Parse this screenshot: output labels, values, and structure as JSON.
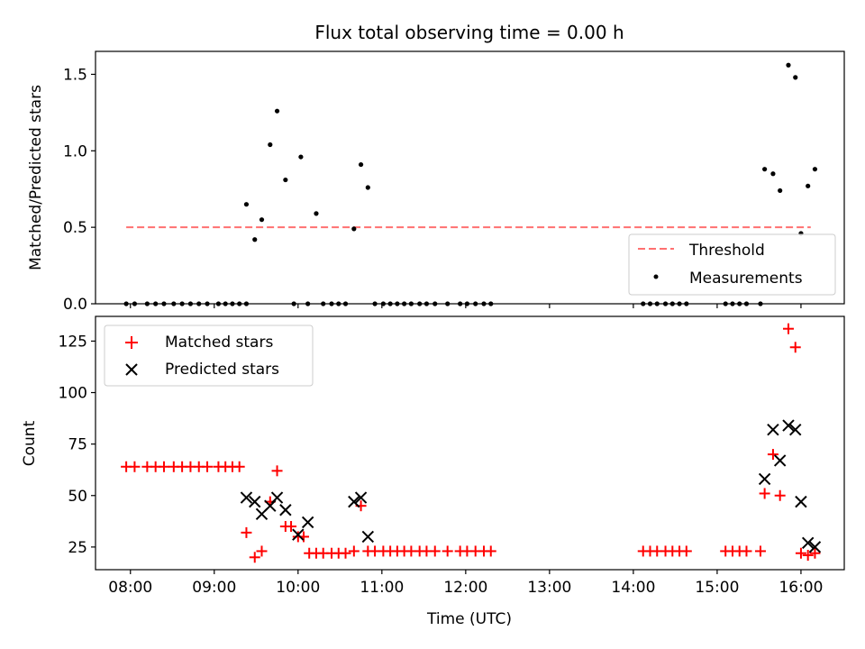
{
  "chart_data": [
    {
      "type": "scatter",
      "title": "Flux total observing time = 0.00 h",
      "ylabel": "Matched/Predicted stars",
      "xlabel": "",
      "xlim": [
        "07:35",
        "16:31"
      ],
      "ylim": [
        0,
        1.65
      ],
      "yticks": [
        0.0,
        0.5,
        1.0,
        1.5
      ],
      "ytick_labels": [
        "0.0",
        "0.5",
        "1.0",
        "1.5"
      ],
      "legend": {
        "placement": "bottom-right",
        "entries": [
          "Threshold",
          "Measurements"
        ]
      },
      "threshold": {
        "name": "Threshold",
        "value": 0.5,
        "x_range": [
          "07:57",
          "16:07"
        ],
        "color": "#ff7070",
        "style": "dashed"
      },
      "series": [
        {
          "name": "Measurements",
          "color": "#000000",
          "marker": "dot",
          "points": [
            [
              "07:57",
              0
            ],
            [
              "08:03",
              0
            ],
            [
              "08:12",
              0
            ],
            [
              "08:18",
              0
            ],
            [
              "08:24",
              0
            ],
            [
              "08:31",
              0
            ],
            [
              "08:37",
              0
            ],
            [
              "08:43",
              0
            ],
            [
              "08:49",
              0
            ],
            [
              "08:55",
              0
            ],
            [
              "09:03",
              0
            ],
            [
              "09:08",
              0
            ],
            [
              "09:13",
              0
            ],
            [
              "09:18",
              0
            ],
            [
              "09:23",
              0
            ],
            [
              "09:23",
              0.65
            ],
            [
              "09:29",
              0.42
            ],
            [
              "09:34",
              0.55
            ],
            [
              "09:40",
              1.04
            ],
            [
              "09:45",
              1.26
            ],
            [
              "09:51",
              0.81
            ],
            [
              "09:57",
              0
            ],
            [
              "10:02",
              0.96
            ],
            [
              "10:07",
              0
            ],
            [
              "10:13",
              0.59
            ],
            [
              "10:18",
              0
            ],
            [
              "10:24",
              0
            ],
            [
              "10:29",
              0
            ],
            [
              "10:34",
              0
            ],
            [
              "10:40",
              0.49
            ],
            [
              "10:45",
              0.91
            ],
            [
              "10:50",
              0.76
            ],
            [
              "10:55",
              0
            ],
            [
              "11:01",
              0
            ],
            [
              "11:06",
              0
            ],
            [
              "11:11",
              0
            ],
            [
              "11:16",
              0
            ],
            [
              "11:21",
              0
            ],
            [
              "11:27",
              0
            ],
            [
              "11:32",
              0
            ],
            [
              "11:38",
              0
            ],
            [
              "11:47",
              0
            ],
            [
              "11:56",
              0
            ],
            [
              "12:01",
              0
            ],
            [
              "12:07",
              0
            ],
            [
              "12:13",
              0
            ],
            [
              "12:18",
              0
            ],
            [
              "14:07",
              0
            ],
            [
              "14:12",
              0
            ],
            [
              "14:17",
              0
            ],
            [
              "14:23",
              0
            ],
            [
              "14:28",
              0
            ],
            [
              "14:33",
              0
            ],
            [
              "14:38",
              0
            ],
            [
              "15:06",
              0
            ],
            [
              "15:11",
              0
            ],
            [
              "15:16",
              0
            ],
            [
              "15:21",
              0
            ],
            [
              "15:31",
              0
            ],
            [
              "15:34",
              0.88
            ],
            [
              "15:40",
              0.85
            ],
            [
              "15:45",
              0.74
            ],
            [
              "15:51",
              1.56
            ],
            [
              "15:56",
              1.48
            ],
            [
              "16:00",
              0.46
            ],
            [
              "16:05",
              0.77
            ],
            [
              "16:10",
              0.88
            ]
          ]
        }
      ]
    },
    {
      "type": "scatter",
      "title": "",
      "ylabel": "Count",
      "xlabel": "Time (UTC)",
      "xlim": [
        "07:35",
        "16:31"
      ],
      "ylim": [
        14,
        137
      ],
      "yticks": [
        25,
        50,
        75,
        100,
        125
      ],
      "ytick_labels": [
        "25",
        "50",
        "75",
        "100",
        "125"
      ],
      "xticks": [
        "08:00",
        "09:00",
        "10:00",
        "11:00",
        "12:00",
        "13:00",
        "14:00",
        "15:00",
        "16:00"
      ],
      "legend": {
        "placement": "top-left",
        "entries": [
          "Matched stars",
          "Predicted stars"
        ]
      },
      "series": [
        {
          "name": "Matched stars",
          "color": "#ff0000",
          "marker": "plus",
          "points": [
            [
              "07:57",
              64
            ],
            [
              "08:03",
              64
            ],
            [
              "08:12",
              64
            ],
            [
              "08:18",
              64
            ],
            [
              "08:24",
              64
            ],
            [
              "08:31",
              64
            ],
            [
              "08:37",
              64
            ],
            [
              "08:43",
              64
            ],
            [
              "08:49",
              64
            ],
            [
              "08:55",
              64
            ],
            [
              "09:03",
              64
            ],
            [
              "09:08",
              64
            ],
            [
              "09:13",
              64
            ],
            [
              "09:18",
              64
            ],
            [
              "09:23",
              32
            ],
            [
              "09:29",
              20
            ],
            [
              "09:34",
              23
            ],
            [
              "09:40",
              47
            ],
            [
              "09:45",
              62
            ],
            [
              "09:51",
              35
            ],
            [
              "09:55",
              35
            ],
            [
              "10:00",
              30
            ],
            [
              "10:04",
              30
            ],
            [
              "10:08",
              22
            ],
            [
              "10:13",
              22
            ],
            [
              "10:18",
              22
            ],
            [
              "10:24",
              22
            ],
            [
              "10:29",
              22
            ],
            [
              "10:34",
              22
            ],
            [
              "10:40",
              23
            ],
            [
              "10:45",
              45
            ],
            [
              "10:50",
              23
            ],
            [
              "10:55",
              23
            ],
            [
              "11:01",
              23
            ],
            [
              "11:06",
              23
            ],
            [
              "11:11",
              23
            ],
            [
              "11:16",
              23
            ],
            [
              "11:21",
              23
            ],
            [
              "11:27",
              23
            ],
            [
              "11:32",
              23
            ],
            [
              "11:38",
              23
            ],
            [
              "11:47",
              23
            ],
            [
              "11:56",
              23
            ],
            [
              "12:01",
              23
            ],
            [
              "12:07",
              23
            ],
            [
              "12:13",
              23
            ],
            [
              "12:18",
              23
            ],
            [
              "14:07",
              23
            ],
            [
              "14:12",
              23
            ],
            [
              "14:17",
              23
            ],
            [
              "14:23",
              23
            ],
            [
              "14:28",
              23
            ],
            [
              "14:33",
              23
            ],
            [
              "14:38",
              23
            ],
            [
              "15:06",
              23
            ],
            [
              "15:11",
              23
            ],
            [
              "15:16",
              23
            ],
            [
              "15:21",
              23
            ],
            [
              "15:31",
              23
            ],
            [
              "15:34",
              51
            ],
            [
              "15:40",
              70
            ],
            [
              "15:45",
              50
            ],
            [
              "15:51",
              131
            ],
            [
              "15:56",
              122
            ],
            [
              "16:00",
              22
            ],
            [
              "16:05",
              21
            ],
            [
              "16:10",
              22
            ]
          ]
        },
        {
          "name": "Predicted stars",
          "color": "#000000",
          "marker": "x",
          "points": [
            [
              "09:23",
              49
            ],
            [
              "09:29",
              47
            ],
            [
              "09:34",
              41
            ],
            [
              "09:40",
              45
            ],
            [
              "09:45",
              49
            ],
            [
              "09:51",
              43
            ],
            [
              "10:00",
              31
            ],
            [
              "10:07",
              37
            ],
            [
              "10:40",
              47
            ],
            [
              "10:45",
              49
            ],
            [
              "10:50",
              30
            ],
            [
              "15:34",
              58
            ],
            [
              "15:40",
              82
            ],
            [
              "15:45",
              67
            ],
            [
              "15:51",
              84
            ],
            [
              "15:56",
              82
            ],
            [
              "16:00",
              47
            ],
            [
              "16:05",
              27
            ],
            [
              "16:10",
              25
            ]
          ]
        }
      ]
    }
  ]
}
